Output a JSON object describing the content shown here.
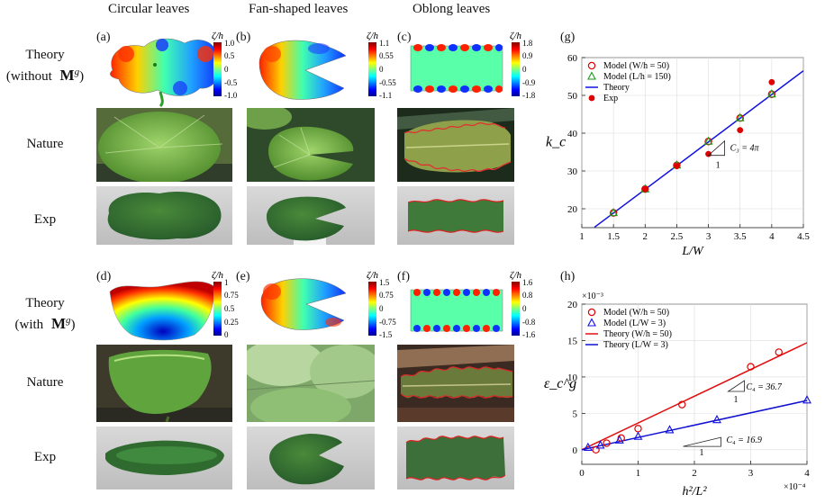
{
  "columns": {
    "circular": "Circular leaves",
    "fan": "Fan-shaped leaves",
    "oblong": "Oblong leaves"
  },
  "rows": {
    "theory_without": [
      "Theory",
      "(without",
      "M",
      "g",
      ")"
    ],
    "theory_with": [
      "Theory",
      "(with",
      "M",
      "g",
      ")"
    ],
    "nature": "Nature",
    "exp": "Exp"
  },
  "panel_labels": {
    "a": "(a)",
    "b": "(b)",
    "c": "(c)",
    "d": "(d)",
    "e": "(e)",
    "f": "(f)",
    "g": "(g)",
    "h": "(h)"
  },
  "colorbar_title": "ζ/h",
  "colorbars": {
    "a": [
      "1.0",
      "0.5",
      "0",
      "-0.5",
      "-1.0"
    ],
    "b": [
      "1.1",
      "0.55",
      "0",
      "-0.55",
      "-1.1"
    ],
    "c": [
      "1.8",
      "0.9",
      "0",
      "-0.9",
      "-1.8"
    ],
    "d": [
      "1",
      "0.75",
      "0.5",
      "0.25",
      "0"
    ],
    "e": [
      "1.5",
      "0.75",
      "0",
      "-0.75",
      "-1.5"
    ],
    "f": [
      "1.6",
      "0.8",
      "0",
      "-0.8",
      "-1.6"
    ]
  },
  "chart_data": [
    {
      "type": "line+scatter",
      "id": "g",
      "xlabel": "L/W",
      "ylabel": "k_c",
      "xlim": [
        1,
        4.5
      ],
      "ylim": [
        15,
        60
      ],
      "xticks": [
        "1",
        "1.5",
        "2",
        "2.5",
        "3",
        "3.5",
        "4",
        "4.5"
      ],
      "yticks": [
        "20",
        "30",
        "40",
        "50",
        "60"
      ],
      "legend": [
        "Model (W/h = 50)",
        "Model (L/h = 150)",
        "Theory",
        "Exp"
      ],
      "annotation": "C₃ = 4π",
      "series": [
        {
          "name": "Model (W/h = 50)",
          "marker": "circle-open",
          "color": "#e00000",
          "x": [
            1.5,
            2,
            2.5,
            3,
            3.5,
            4
          ],
          "y": [
            18.9,
            25.2,
            31.5,
            37.8,
            44.0,
            50.3
          ]
        },
        {
          "name": "Model (L/h = 150)",
          "marker": "triangle-open",
          "color": "#1a9a1a",
          "x": [
            1.5,
            2,
            2.5,
            3,
            3.5,
            4
          ],
          "y": [
            18.9,
            25.2,
            31.5,
            37.8,
            44.0,
            50.3
          ]
        },
        {
          "name": "Theory",
          "marker": "line",
          "color": "#1010e0",
          "x": [
            1.2,
            4.5
          ],
          "y": [
            15.1,
            56.5
          ]
        },
        {
          "name": "Exp",
          "marker": "circle-filled",
          "color": "#e00000",
          "x": [
            2,
            2.5,
            3,
            3.5,
            4
          ],
          "y": [
            25.2,
            31.3,
            34.5,
            40.8,
            53.5
          ]
        }
      ]
    },
    {
      "type": "line+scatter",
      "id": "h",
      "xlabel": "h²/L²",
      "ylabel": "ε_c^g",
      "xlim": [
        0,
        4
      ],
      "ylim": [
        -2,
        20
      ],
      "xscale_label": "×10⁻⁴",
      "yscale_label": "×10⁻³",
      "xticks": [
        "0",
        "1",
        "2",
        "3",
        "4"
      ],
      "yticks": [
        "0",
        "5",
        "10",
        "15",
        "20"
      ],
      "legend": [
        "Model (W/h = 50)",
        "Model (L/W = 3)",
        "Theory (W/h = 50)",
        "Theory (L/W = 3)"
      ],
      "annotations": [
        "C₄ = 36.7",
        "C₄ = 16.9"
      ],
      "series": [
        {
          "name": "Model (W/h = 50)",
          "marker": "circle-open",
          "color": "#e00000",
          "x": [
            0.25,
            0.44,
            0.7,
            1.0,
            1.78,
            3.0,
            3.5
          ],
          "y": [
            0.0,
            0.9,
            1.6,
            2.9,
            6.2,
            11.4,
            13.4
          ]
        },
        {
          "name": "Model (L/W = 3)",
          "marker": "triangle-open",
          "color": "#1010e0",
          "x": [
            0.11,
            0.33,
            0.67,
            1.0,
            1.56,
            2.4,
            4.0
          ],
          "y": [
            0.3,
            0.6,
            1.3,
            1.8,
            2.7,
            4.1,
            6.8
          ]
        },
        {
          "name": "Theory (W/h = 50)",
          "marker": "line",
          "color": "#e01010",
          "x": [
            0.0,
            4.0
          ],
          "y": [
            0.0,
            14.7
          ]
        },
        {
          "name": "Theory (L/W = 3)",
          "marker": "line",
          "color": "#1010d0",
          "x": [
            0.0,
            4.0
          ],
          "y": [
            0.0,
            6.76
          ]
        }
      ]
    }
  ]
}
